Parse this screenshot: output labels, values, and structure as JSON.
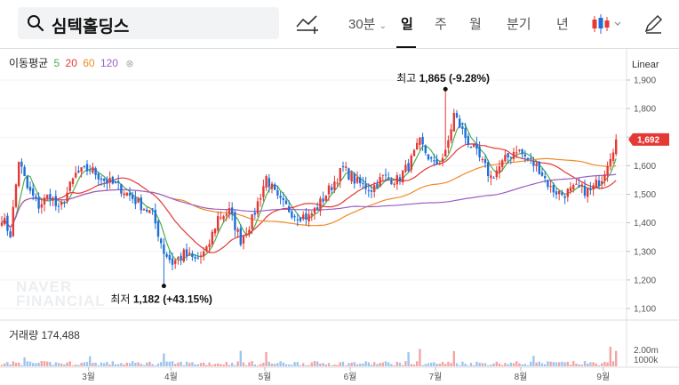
{
  "search": {
    "stock_name": "심텍홀딩스",
    "icon": "search-icon"
  },
  "toolbar": {
    "indicator_icon": "chart-add-icon",
    "interval": "30분",
    "periods": [
      "일",
      "주",
      "월",
      "분기",
      "년"
    ],
    "active_period": "일",
    "candle_type_icon": "candlestick-icon",
    "draw_icon": "pencil-icon"
  },
  "ma_legend": {
    "label": "이동평균",
    "items": [
      {
        "text": "5",
        "color": "#4caf50"
      },
      {
        "text": "20",
        "color": "#e53935"
      },
      {
        "text": "60",
        "color": "#f08a24"
      },
      {
        "text": "120",
        "color": "#9c5fc6"
      }
    ]
  },
  "scale_mode": "Linear",
  "volume": {
    "label": "거래량",
    "value": "174,488",
    "axis_labels": [
      "2.00m",
      "1000k"
    ]
  },
  "watermark": [
    "NAVER",
    "FINANCIAL"
  ],
  "chart_data": {
    "type": "candlestick",
    "y_axis": {
      "range": [
        1100,
        1960
      ],
      "ticks": [
        1100,
        1200,
        1300,
        1400,
        1500,
        1600,
        1700,
        1800,
        1900
      ],
      "tick_labels": [
        "1,100",
        "1,200",
        "1,300",
        "1,400",
        "1,500",
        "1,600",
        "1,700",
        "1,800",
        "1,900"
      ]
    },
    "x_axis": {
      "ticks": [
        "3월",
        "4월",
        "5월",
        "6월",
        "7월",
        "8월",
        "9월"
      ],
      "tick_positions": [
        18,
        47,
        80,
        110,
        140,
        170,
        199
      ]
    },
    "current_price": {
      "value": 1692,
      "label": "1,692"
    },
    "high_annotation": {
      "label": "최고",
      "value": "1,865 (-9.28%)",
      "index": 156,
      "price": 1865
    },
    "low_annotation": {
      "label": "최저",
      "value": "1,182 (+43.15%)",
      "index": 57,
      "price": 1182
    },
    "anchors": [
      [
        0,
        1420
      ],
      [
        3,
        1360
      ],
      [
        6,
        1620
      ],
      [
        9,
        1520
      ],
      [
        13,
        1460
      ],
      [
        17,
        1500
      ],
      [
        20,
        1440
      ],
      [
        26,
        1570
      ],
      [
        31,
        1590
      ],
      [
        36,
        1550
      ],
      [
        42,
        1520
      ],
      [
        48,
        1470
      ],
      [
        53,
        1430
      ],
      [
        57,
        1300
      ],
      [
        60,
        1260
      ],
      [
        64,
        1290
      ],
      [
        68,
        1270
      ],
      [
        72,
        1300
      ],
      [
        76,
        1420
      ],
      [
        80,
        1440
      ],
      [
        84,
        1340
      ],
      [
        88,
        1410
      ],
      [
        93,
        1560
      ],
      [
        97,
        1480
      ],
      [
        103,
        1430
      ],
      [
        108,
        1420
      ],
      [
        112,
        1470
      ],
      [
        116,
        1530
      ],
      [
        120,
        1590
      ],
      [
        125,
        1540
      ],
      [
        130,
        1520
      ],
      [
        134,
        1560
      ],
      [
        139,
        1550
      ],
      [
        143,
        1600
      ],
      [
        147,
        1680
      ],
      [
        152,
        1600
      ],
      [
        156,
        1640
      ],
      [
        159,
        1780
      ],
      [
        163,
        1700
      ],
      [
        167,
        1640
      ],
      [
        172,
        1560
      ],
      [
        177,
        1620
      ],
      [
        181,
        1660
      ],
      [
        185,
        1620
      ],
      [
        189,
        1590
      ],
      [
        193,
        1520
      ],
      [
        197,
        1500
      ],
      [
        202,
        1520
      ],
      [
        207,
        1510
      ],
      [
        211,
        1560
      ],
      [
        214,
        1640
      ],
      [
        216,
        1692
      ]
    ],
    "series": [
      {
        "name": "5",
        "color": "#4caf50"
      },
      {
        "name": "20",
        "color": "#e53935"
      },
      {
        "name": "60",
        "color": "#f08a24"
      },
      {
        "name": "120",
        "color": "#9c5fc6"
      }
    ],
    "colors": {
      "up": "#e53935",
      "down": "#1e6fd9",
      "volume_up": "#f4a4a4",
      "volume_down": "#9ec5ef"
    }
  }
}
